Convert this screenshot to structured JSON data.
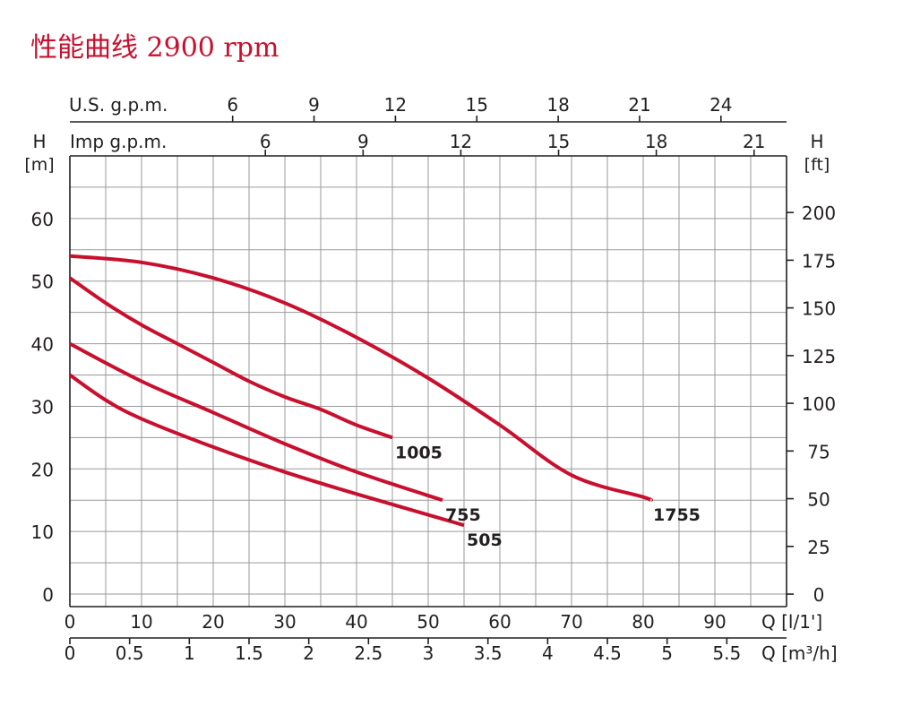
{
  "title": "性能曲线 2900 rpm",
  "colors": {
    "curve": "#c8102e",
    "grid": "#9a9a9a",
    "frame": "#231f20",
    "title": "#c8102e",
    "text": "#231f20"
  },
  "chart_data": {
    "type": "line",
    "title": "性能曲线 2900 rpm",
    "grid": true,
    "x_axis_bottom": {
      "label": "Q [l/1']",
      "range": [
        0,
        100
      ],
      "ticks": [
        0,
        10,
        20,
        30,
        40,
        50,
        60,
        70,
        80,
        90
      ],
      "tick_labels": [
        "0",
        "10",
        "20",
        "30",
        "40",
        "50",
        "60",
        "70",
        "80",
        "90"
      ]
    },
    "x_axis_bottom2": {
      "label": "Q [m³/h]",
      "ticks": [
        0,
        0.5,
        1,
        1.5,
        2,
        2.5,
        3,
        3.5,
        4,
        4.5,
        5,
        5.5
      ],
      "tick_labels": [
        "0",
        "0.5",
        "1",
        "1.5",
        "2",
        "2.5",
        "3",
        "3.5",
        "4",
        "4.5",
        "5",
        "5.5"
      ]
    },
    "x_axis_top_us": {
      "label": "U.S. g.p.m.",
      "ticks": [
        6,
        9,
        12,
        15,
        18,
        21,
        24
      ],
      "tick_labels": [
        "6",
        "9",
        "12",
        "15",
        "18",
        "21",
        "24"
      ]
    },
    "x_axis_top_imp": {
      "label": "Imp g.p.m.",
      "ticks": [
        6,
        9,
        12,
        15,
        18,
        21
      ],
      "tick_labels": [
        "6",
        "9",
        "12",
        "15",
        "18",
        "21"
      ]
    },
    "y_axis_left": {
      "label_top": "H",
      "unit": "[m]",
      "range": [
        -2,
        70
      ],
      "ticks": [
        0,
        10,
        20,
        30,
        40,
        50,
        60
      ],
      "tick_labels": [
        "0",
        "10",
        "20",
        "30",
        "40",
        "50",
        "60"
      ]
    },
    "y_axis_right": {
      "label_top": "H",
      "unit": "[ft]",
      "ticks": [
        0,
        25,
        50,
        75,
        100,
        125,
        150,
        175,
        200
      ],
      "tick_labels": [
        "0",
        "25",
        "50",
        "75",
        "100",
        "125",
        "150",
        "175",
        "200"
      ]
    },
    "series": [
      {
        "name": "1755",
        "x": [
          0,
          10,
          20,
          30,
          40,
          50,
          60,
          70,
          80,
          81
        ],
        "y": [
          54,
          53,
          50.5,
          46.5,
          41,
          34.5,
          27,
          19,
          15.5,
          15
        ]
      },
      {
        "name": "1005",
        "x": [
          0,
          5,
          10,
          15,
          20,
          25,
          30,
          35,
          40,
          45
        ],
        "y": [
          50.5,
          46.5,
          43,
          40,
          37,
          34,
          31.5,
          29.5,
          27,
          25
        ]
      },
      {
        "name": "755",
        "x": [
          0,
          10,
          20,
          30,
          40,
          52
        ],
        "y": [
          40,
          34,
          29,
          24,
          19.5,
          15
        ]
      },
      {
        "name": "505",
        "x": [
          0,
          5,
          10,
          20,
          30,
          40,
          55
        ],
        "y": [
          35,
          31,
          28,
          23.5,
          19.5,
          16,
          11
        ]
      }
    ]
  }
}
